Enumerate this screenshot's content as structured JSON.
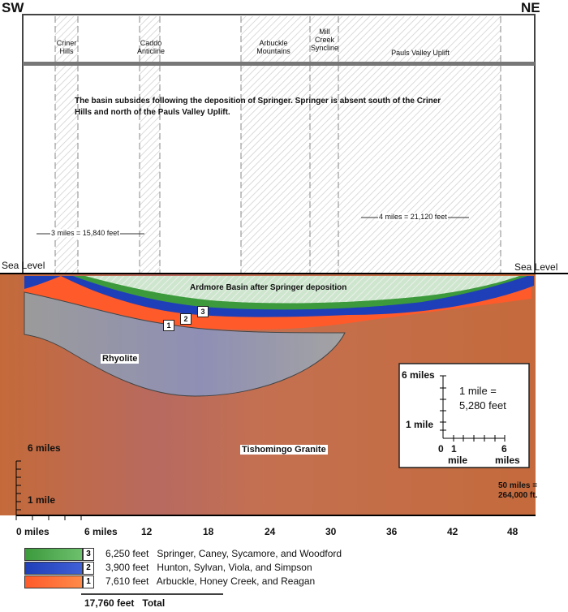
{
  "corners": {
    "left": "SW",
    "right": "NE"
  },
  "features": [
    {
      "name": "Criner\nHills"
    },
    {
      "name": "Caddo\nAnticline"
    },
    {
      "name": "Arbuckle\nMountains"
    },
    {
      "name": "Mill\nCreek\nSyncline"
    },
    {
      "name": "Pauls Valley Uplift"
    }
  ],
  "caption": "The basin subsides following the deposition of Springer. Springer is absent south of the Criner Hills and north of the Pauls Valley Uplift.",
  "scale_notes": {
    "left": "3 miles = 15,840 feet",
    "right": "4 miles = 21,120 feet"
  },
  "sea_level": "Sea Level",
  "basin_title": "Ardmore Basin after Springer deposition",
  "rock_labels": {
    "rhyolite": "Rhyolite",
    "granite": "Tishomingo Granite"
  },
  "layer_markers": [
    "1",
    "2",
    "3"
  ],
  "inset": {
    "top": "6 miles",
    "bottom": "1 mile",
    "eq1": "1 mile =",
    "eq2": "5,280 feet",
    "x0": "0",
    "x1": "1",
    "x1b": "mile",
    "x6": "6",
    "x6b": "miles"
  },
  "left_axis": {
    "top": "6 miles",
    "bottom": "1 mile"
  },
  "total_scale": {
    "line1": "50 miles =",
    "line2": "264,000 ft."
  },
  "x_axis": {
    "first": "0 miles",
    "second": "6 miles",
    "ticks": [
      "12",
      "18",
      "24",
      "30",
      "36",
      "42",
      "48"
    ]
  },
  "legend": [
    {
      "num": "3",
      "thickness": "6,250 feet",
      "formations": "Springer, Caney, Sycamore, and Woodford",
      "color": "#3c9a3c"
    },
    {
      "num": "2",
      "thickness": "3,900 feet",
      "formations": "Hunton, Sylvan, Viola, and Simpson",
      "color": "#1f3fb8"
    },
    {
      "num": "1",
      "thickness": "7,610 feet",
      "formations": "Arbuckle, Honey Creek, and Reagan",
      "color": "#ff5a2a"
    }
  ],
  "total": {
    "value": "17,760 feet",
    "label": "Total"
  },
  "colors": {
    "granite": "#c86a3c",
    "rhyolite": "#9a9a9a",
    "green": "#3c9a3c",
    "blue": "#1f3fb8",
    "orange": "#ff5a2a"
  }
}
